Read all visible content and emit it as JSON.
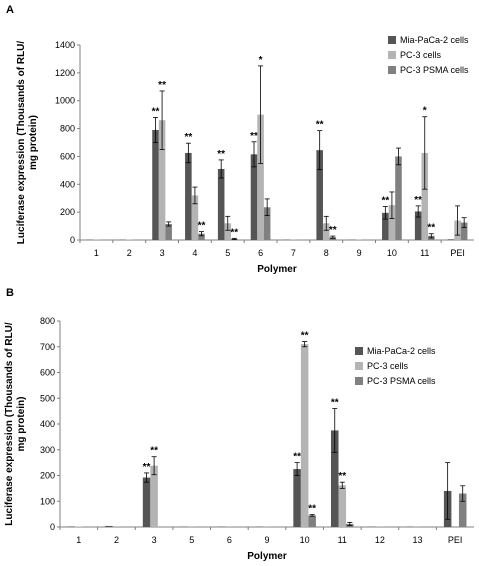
{
  "chart_data": [
    {
      "panel": "A",
      "type": "bar",
      "categories": [
        "1",
        "2",
        "3",
        "4",
        "5",
        "6",
        "7",
        "8",
        "9",
        "10",
        "11",
        "PEI"
      ],
      "xlabel": "Polymer",
      "ylabel": "Luciferase expression (Thousands of RLU/ mg protein)",
      "ylim": [
        0,
        1400
      ],
      "yticks": [
        "0",
        "200",
        "400",
        "600",
        "800",
        "1000",
        "1200",
        "1400"
      ],
      "legend_position": "top-right",
      "series": [
        {
          "name": "Mia-PaCa-2 cells",
          "color": "#555555",
          "values": [
            2,
            2,
            790,
            625,
            510,
            615,
            2,
            645,
            2,
            195,
            205,
            5
          ],
          "errors": [
            0,
            0,
            90,
            70,
            65,
            90,
            0,
            140,
            0,
            45,
            40,
            0
          ],
          "sig": [
            "",
            "",
            "**",
            "**",
            "**",
            "**",
            "",
            "**",
            "",
            "**",
            "**",
            ""
          ]
        },
        {
          "name": "PC-3 cells",
          "color": "#b4b4b4",
          "values": [
            2,
            4,
            860,
            320,
            120,
            900,
            2,
            120,
            2,
            250,
            625,
            140
          ],
          "errors": [
            0,
            0,
            210,
            60,
            50,
            350,
            0,
            50,
            0,
            95,
            260,
            105
          ],
          "sig": [
            "",
            "",
            "**",
            "",
            "",
            "*",
            "",
            "",
            "",
            "",
            "*",
            ""
          ]
        },
        {
          "name": "PC-3 PSMA cells",
          "color": "#808080",
          "values": [
            2,
            2,
            115,
            45,
            8,
            235,
            2,
            20,
            2,
            600,
            30,
            125
          ],
          "errors": [
            0,
            0,
            15,
            15,
            4,
            60,
            0,
            8,
            0,
            60,
            15,
            35
          ],
          "sig": [
            "",
            "",
            "",
            "**",
            "**",
            "",
            "",
            "**",
            "",
            "",
            "**",
            ""
          ]
        }
      ]
    },
    {
      "panel": "B",
      "type": "bar",
      "categories": [
        "1",
        "2",
        "3",
        "5",
        "6",
        "9",
        "10",
        "11",
        "12",
        "13",
        "PEI"
      ],
      "xlabel": "Polymer",
      "ylabel": "Luciferase expression (Thousands of RLU/ mg protein)",
      "ylim": [
        0,
        800
      ],
      "yticks": [
        "0",
        "100",
        "200",
        "300",
        "400",
        "500",
        "600",
        "700",
        "800"
      ],
      "legend_position": "top-right",
      "series": [
        {
          "name": "Mia-PaCa-2 cells",
          "color": "#555555",
          "values": [
            2,
            4,
            192,
            1,
            1,
            1,
            225,
            375,
            1,
            1,
            140
          ],
          "errors": [
            0,
            0,
            18,
            0,
            0,
            0,
            25,
            85,
            0,
            0,
            110
          ],
          "sig": [
            "",
            "",
            "**",
            "",
            "",
            "",
            "**",
            "**",
            "",
            "",
            ""
          ]
        },
        {
          "name": "PC-3 cells",
          "color": "#b4b4b4",
          "values": [
            2,
            3,
            238,
            1,
            1,
            1,
            710,
            162,
            1,
            1,
            0
          ],
          "errors": [
            0,
            0,
            35,
            0,
            0,
            0,
            10,
            12,
            0,
            0,
            0
          ],
          "sig": [
            "",
            "",
            "**",
            "",
            "",
            "",
            "**",
            "**",
            "",
            "",
            ""
          ]
        },
        {
          "name": "PC-3 PSMA cells",
          "color": "#808080",
          "values": [
            1,
            1,
            1,
            1,
            1,
            1,
            45,
            12,
            1,
            2,
            130
          ],
          "errors": [
            0,
            0,
            0,
            0,
            0,
            0,
            3,
            6,
            0,
            0,
            30
          ],
          "sig": [
            "",
            "",
            "",
            "",
            "",
            "",
            "**",
            "",
            "",
            "",
            ""
          ]
        }
      ]
    }
  ]
}
